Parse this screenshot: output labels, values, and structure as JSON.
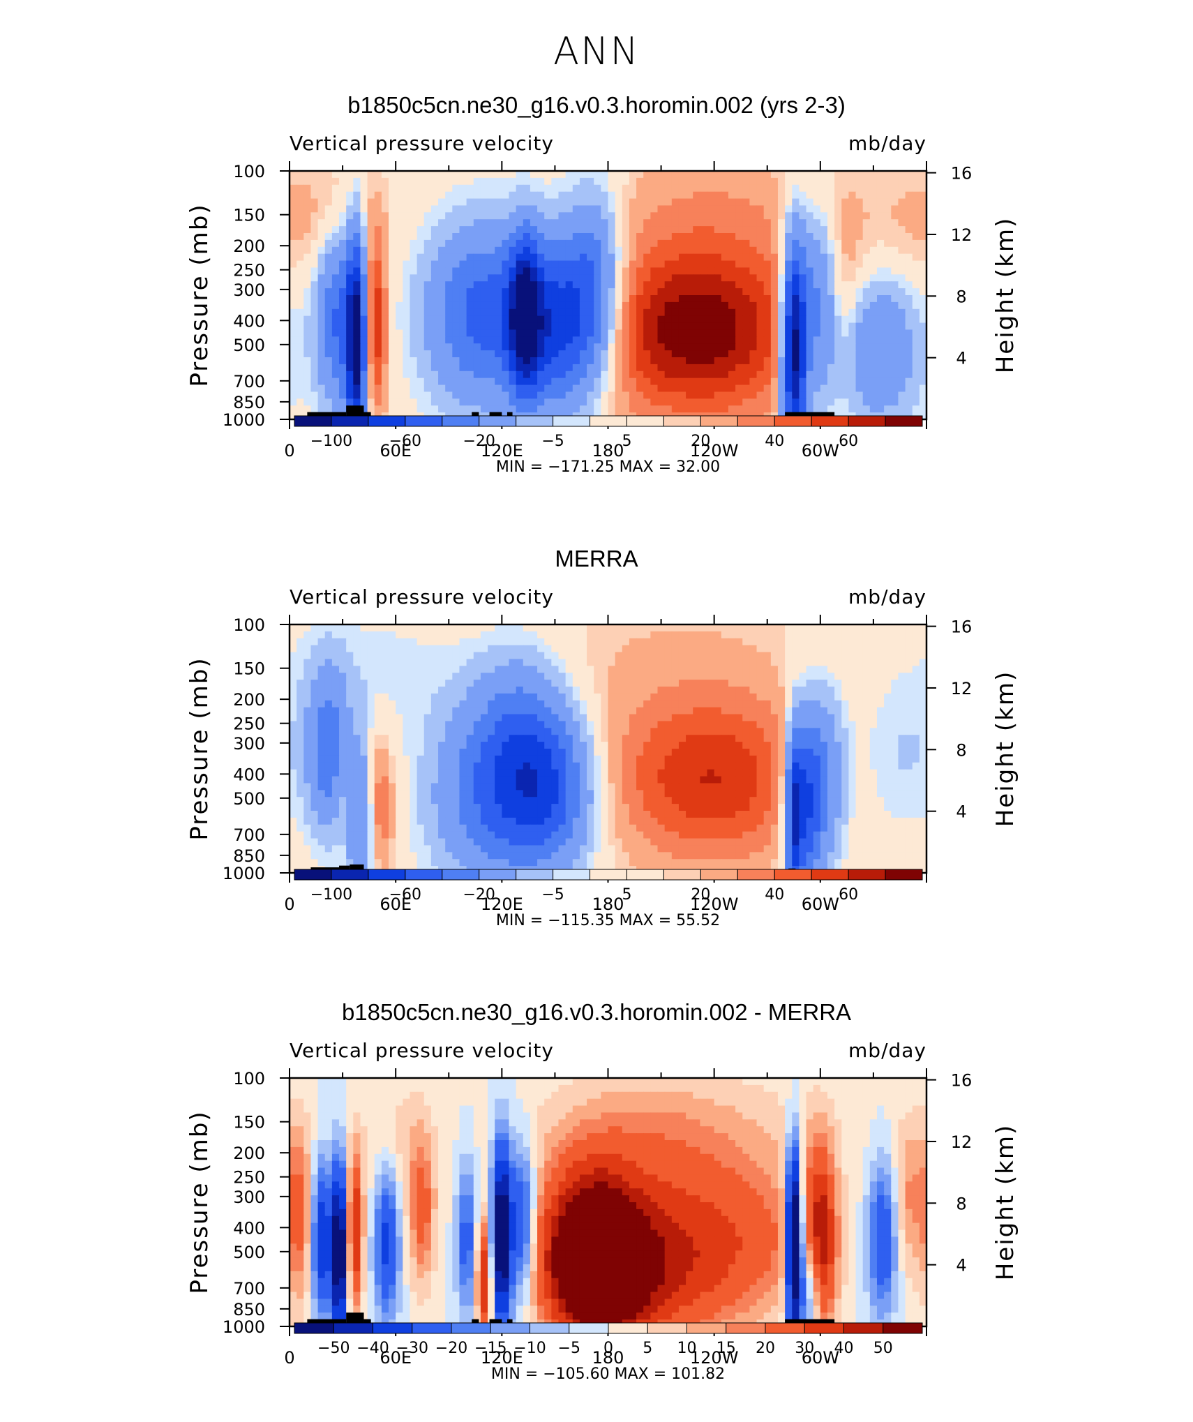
{
  "figure": {
    "title": "ANN"
  },
  "chart_data": [
    {
      "type": "heatmap",
      "title": "b1850c5cn.ne30_g16.v0.3.horomin.002 (yrs 2-3)",
      "subtitle_left": "Vertical pressure velocity",
      "subtitle_right": "mb/day",
      "ylabel": "Pressure (mb)",
      "ylabel_right": "Height (km)",
      "x_ticks": [
        "0",
        "60E",
        "120E",
        "180",
        "120W",
        "60W"
      ],
      "y_ticks": [
        "100",
        "150",
        "200",
        "250",
        "300",
        "400",
        "500",
        "700",
        "850",
        "1000"
      ],
      "y2_ticks": [
        "16",
        "12",
        "8",
        "4"
      ],
      "min_max_text": "MIN = −171.25   MAX =   32.00",
      "min": -171.25,
      "max": 32.0,
      "colorbar_labels": [
        "−100",
        "−60",
        "−20",
        "−5",
        "5",
        "20",
        "40",
        "60"
      ],
      "colorbar_levels": [
        -120,
        -100,
        -80,
        -60,
        -40,
        -20,
        -10,
        -5,
        0,
        5,
        10,
        20,
        30,
        40,
        50,
        60
      ]
    },
    {
      "type": "heatmap",
      "title": "MERRA",
      "subtitle_left": "Vertical pressure velocity",
      "subtitle_right": "mb/day",
      "ylabel": "Pressure (mb)",
      "ylabel_right": "Height (km)",
      "x_ticks": [
        "0",
        "60E",
        "120E",
        "180",
        "120W",
        "60W"
      ],
      "y_ticks": [
        "100",
        "150",
        "200",
        "250",
        "300",
        "400",
        "500",
        "700",
        "850",
        "1000"
      ],
      "y2_ticks": [
        "16",
        "12",
        "8",
        "4"
      ],
      "min_max_text": "MIN = −115.35   MAX =   55.52",
      "min": -115.35,
      "max": 55.52,
      "colorbar_labels": [
        "−100",
        "−60",
        "−20",
        "−5",
        "5",
        "20",
        "40",
        "60"
      ],
      "colorbar_levels": [
        -120,
        -100,
        -80,
        -60,
        -40,
        -20,
        -10,
        -5,
        0,
        5,
        10,
        20,
        30,
        40,
        50,
        60
      ]
    },
    {
      "type": "heatmap",
      "title": "b1850c5cn.ne30_g16.v0.3.horomin.002 - MERRA",
      "subtitle_left": "Vertical pressure velocity",
      "subtitle_right": "mb/day",
      "ylabel": "Pressure (mb)",
      "ylabel_right": "Height (km)",
      "x_ticks": [
        "0",
        "60E",
        "120E",
        "180",
        "120W",
        "60W"
      ],
      "y_ticks": [
        "100",
        "150",
        "200",
        "250",
        "300",
        "400",
        "500",
        "700",
        "850",
        "1000"
      ],
      "y2_ticks": [
        "16",
        "12",
        "8",
        "4"
      ],
      "min_max_text": "MIN = −105.60   MAX = 101.82",
      "min": -105.6,
      "max": 101.82,
      "colorbar_labels": [
        "−50",
        "−40",
        "−30",
        "−20",
        "−15",
        "−10",
        "−5",
        "0",
        "5",
        "10",
        "15",
        "20",
        "30",
        "40",
        "50"
      ],
      "colorbar_levels": [
        -50,
        -40,
        -30,
        -20,
        -15,
        -10,
        -5,
        0,
        5,
        10,
        15,
        20,
        30,
        40,
        50
      ]
    }
  ],
  "colors": {
    "palette": [
      "#08117a",
      "#0a25b0",
      "#0f3fe0",
      "#2f5ff0",
      "#4f7ff3",
      "#7a9ff6",
      "#a6c2f8",
      "#d3e6fd",
      "#fde9d5",
      "#fdd0b5",
      "#fbaa83",
      "#f7815a",
      "#f25c2f",
      "#e03a14",
      "#b81c08",
      "#7f0303"
    ],
    "topography": "#000000"
  }
}
